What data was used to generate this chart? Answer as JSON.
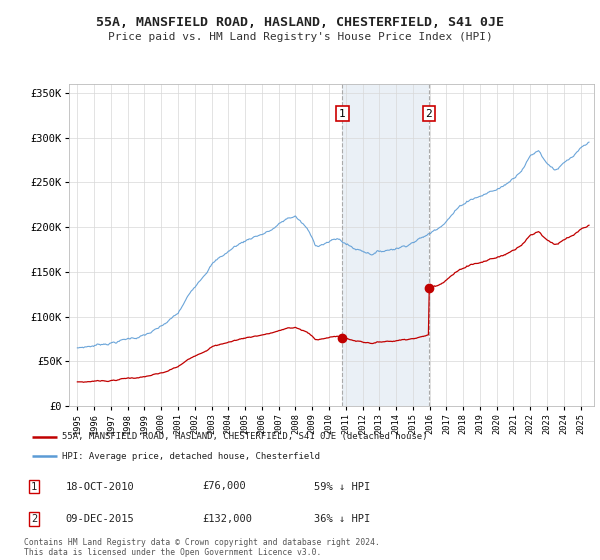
{
  "title": "55A, MANSFIELD ROAD, HASLAND, CHESTERFIELD, S41 0JE",
  "subtitle": "Price paid vs. HM Land Registry's House Price Index (HPI)",
  "ylabel_ticks": [
    "£0",
    "£50K",
    "£100K",
    "£150K",
    "£200K",
    "£250K",
    "£300K",
    "£350K"
  ],
  "ytick_values": [
    0,
    50000,
    100000,
    150000,
    200000,
    250000,
    300000,
    350000
  ],
  "ylim": [
    0,
    360000
  ],
  "hpi_color": "#5b9bd5",
  "price_color": "#c00000",
  "sale1_price": 76000,
  "sale1_year": 2010.8,
  "sale2_price": 132000,
  "sale2_year": 2015.95,
  "legend_line1": "55A, MANSFIELD ROAD, HASLAND, CHESTERFIELD, S41 0JE (detached house)",
  "legend_line2": "HPI: Average price, detached house, Chesterfield",
  "footer1": "Contains HM Land Registry data © Crown copyright and database right 2024.",
  "footer2": "This data is licensed under the Open Government Licence v3.0.",
  "table_row1": [
    "1",
    "18-OCT-2010",
    "£76,000",
    "59% ↓ HPI"
  ],
  "table_row2": [
    "2",
    "09-DEC-2015",
    "£132,000",
    "36% ↓ HPI"
  ],
  "background_color": "#ffffff",
  "grid_color": "#d8d8d8",
  "shade_color": "#dce6f1",
  "xlim_left": 1994.5,
  "xlim_right": 2025.8
}
